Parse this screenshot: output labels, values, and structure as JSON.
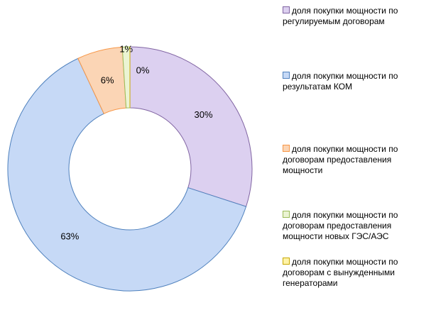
{
  "chart_data": {
    "type": "pie",
    "categories": [
      "доля покупки мощности по регулируемым договорам",
      "доля покупки мощности по результатам КОМ",
      "доля покупки мощности по договорам предоставления мощности",
      "доля покупки мощности по договорам предоставления мощности новых ГЭС/АЭС",
      "доля покупки мощности по договорам с вынужденными генераторами"
    ],
    "values": [
      30,
      63,
      6,
      1,
      0
    ],
    "value_labels": [
      "30%",
      "63%",
      "6%",
      "1%",
      "0%"
    ],
    "colors": [
      "#dcd0f0",
      "#c6d9f6",
      "#fbd5b5",
      "#ebf4d3",
      "#fff3a8"
    ],
    "edge_colors": [
      "#8064a2",
      "#4f81bd",
      "#f79646",
      "#9bbb59",
      "#c8a800"
    ],
    "legend": "right"
  }
}
